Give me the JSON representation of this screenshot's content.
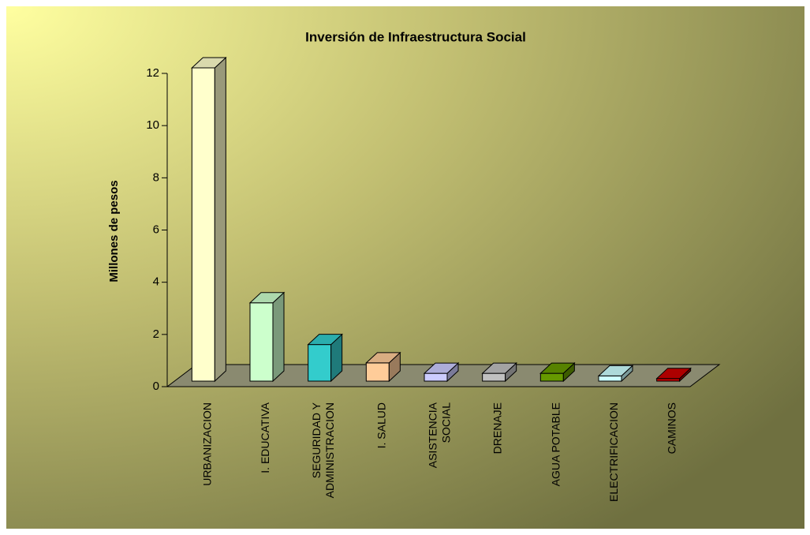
{
  "chart_data": {
    "type": "bar3d",
    "title": "Inversión de Infraestructura Social",
    "y_label": "Millones de pesos",
    "categories": [
      "URBANIZACION",
      "I. EDUCATIVA",
      "SEGURIDAD  Y\nADMINISTRACION",
      "I. SALUD",
      "ASISTENCIA\nSOCIAL",
      "DRENAJE",
      "AGUA POTABLE",
      "ELECTRIFICACION",
      "CAMINOS"
    ],
    "values": [
      12,
      3,
      1.4,
      0.7,
      0.3,
      0.3,
      0.3,
      0.2,
      0.1
    ],
    "colors": [
      "#ffffcc",
      "#ccffcc",
      "#33cccc",
      "#ffcc99",
      "#ccccff",
      "#c0c0c0",
      "#669900",
      "#ccffff",
      "#cc0000"
    ],
    "ylim": [
      0,
      12
    ],
    "yticks": [
      0,
      2,
      4,
      6,
      8,
      10,
      12
    ]
  }
}
